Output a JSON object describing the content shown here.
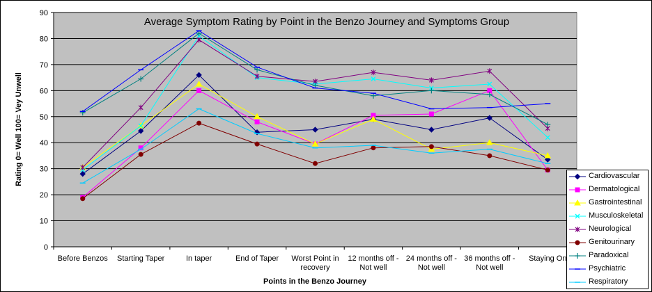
{
  "chart_data": {
    "type": "line",
    "title": "Average Symptom Rating by Point in the Benzo Journey and Symptoms Group",
    "xlabel": "Points in the Benzo Journey",
    "ylabel": "Rating 0= Well 100= Vey Unwell",
    "ylim": [
      0,
      90
    ],
    "yticks": [
      0,
      10,
      20,
      30,
      40,
      50,
      60,
      70,
      80,
      90
    ],
    "grid": true,
    "legend_position": "right",
    "plot_background": "#c0c0c0",
    "categories": [
      [
        "Before Benzos"
      ],
      [
        "Starting Taper"
      ],
      [
        "In taper"
      ],
      [
        "End of Taper"
      ],
      [
        "Worst Point in",
        "recovery"
      ],
      [
        "12 months off -",
        "Not well"
      ],
      [
        "24 months off -",
        "Not well"
      ],
      [
        "36 months off -",
        "Not well"
      ],
      [
        "Staying On"
      ]
    ],
    "series": [
      {
        "name": "Cardiovascular",
        "color": "#000080",
        "marker": "diamond",
        "values": [
          28,
          44.5,
          66,
          44,
          45,
          49,
          45,
          49.5,
          33.5
        ]
      },
      {
        "name": "Dermatological",
        "color": "#ff00ff",
        "marker": "square",
        "values": [
          19,
          38,
          60,
          48,
          39.5,
          50.5,
          51,
          60,
          29.5
        ]
      },
      {
        "name": "Gastrointestinal",
        "color": "#ffff00",
        "marker": "triangle",
        "values": [
          30.5,
          46.5,
          62.5,
          50,
          39.5,
          49,
          37.5,
          40,
          35
        ]
      },
      {
        "name": "Musculoskeletal",
        "color": "#00ffff",
        "marker": "x",
        "values": [
          29.5,
          46.5,
          81,
          65,
          62.5,
          64.5,
          61,
          62.5,
          42
        ]
      },
      {
        "name": "Neurological",
        "color": "#800080",
        "marker": "star",
        "values": [
          30.5,
          53.5,
          79.5,
          65.5,
          63.5,
          67,
          64,
          67.5,
          45.5
        ]
      },
      {
        "name": "Genitourinary",
        "color": "#800000",
        "marker": "circle",
        "values": [
          18.5,
          35.5,
          47.5,
          39.5,
          32,
          38,
          38.5,
          35,
          29.5
        ]
      },
      {
        "name": "Paradoxical",
        "color": "#008080",
        "marker": "plus",
        "values": [
          51.5,
          64.5,
          82,
          68,
          62,
          58,
          60,
          58.5,
          47
        ]
      },
      {
        "name": "Psychiatric",
        "color": "#0000ff",
        "marker": "dash",
        "values": [
          52,
          68,
          83,
          69,
          61,
          59,
          53,
          53.5,
          55
        ]
      },
      {
        "name": "Respiratory",
        "color": "#00ccff",
        "marker": "dash",
        "values": [
          24.5,
          37.5,
          53,
          43.5,
          38,
          39,
          36,
          37.5,
          32
        ]
      }
    ]
  }
}
